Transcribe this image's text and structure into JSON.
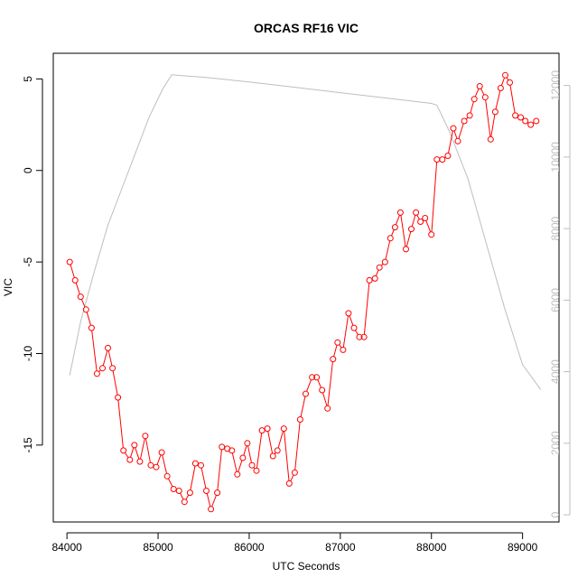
{
  "chart_data": {
    "type": "line",
    "title": "ORCAS RF16 VIC",
    "xlabel": "UTC Seconds",
    "ylabel": "VIC",
    "y2label": "",
    "xlim": [
      83850,
      89400
    ],
    "ylim": [
      -19.2,
      6.4
    ],
    "y2lim": [
      -200,
      12900
    ],
    "x_ticks": [
      84000,
      85000,
      86000,
      87000,
      88000,
      89000
    ],
    "y_ticks": [
      5,
      0,
      -5,
      -10,
      -15
    ],
    "y2_ticks": [
      0,
      2000,
      4000,
      6000,
      8000,
      10000,
      12000
    ],
    "grid": false,
    "legend": "none",
    "colors": {
      "vic": "#ff0000",
      "altitude": "#bebebe",
      "axis": "#000000",
      "right_axis": "#bebebe"
    },
    "series": [
      {
        "axis": "left",
        "style": "points-lines",
        "x": [
          84030,
          84090,
          84150,
          84210,
          84270,
          84330,
          84390,
          84450,
          84500,
          84560,
          84620,
          84690,
          84740,
          84800,
          84860,
          84920,
          84980,
          85040,
          85100,
          85170,
          85230,
          85290,
          85350,
          85410,
          85470,
          85530,
          85580,
          85650,
          85700,
          85760,
          85810,
          85870,
          85930,
          85980,
          86030,
          86080,
          86140,
          86200,
          86260,
          86310,
          86380,
          86440,
          86500,
          86560,
          86620,
          86690,
          86740,
          86800,
          86860,
          86920,
          86970,
          87030,
          87090,
          87150,
          87210,
          87260,
          87320,
          87380,
          87430,
          87490,
          87550,
          87600,
          87660,
          87720,
          87780,
          87830,
          87880,
          87930,
          88000,
          88060,
          88120,
          88180,
          88240,
          88290,
          88360,
          88420,
          88470,
          88530,
          88590,
          88650,
          88700,
          88760,
          88810,
          88860,
          88920,
          88980,
          89030,
          89090,
          89150
        ],
        "values": [
          -5.0,
          -6.0,
          -6.9,
          -7.6,
          -8.6,
          -11.1,
          -10.8,
          -9.7,
          -10.8,
          -12.4,
          -15.3,
          -15.8,
          -15.0,
          -15.9,
          -14.5,
          -16.1,
          -16.2,
          -15.4,
          -16.7,
          -17.4,
          -17.5,
          -18.1,
          -17.6,
          -16.0,
          -16.1,
          -17.5,
          -18.5,
          -17.6,
          -15.1,
          -15.2,
          -15.3,
          -16.6,
          -15.7,
          -14.9,
          -16.1,
          -16.4,
          -14.2,
          -14.1,
          -15.6,
          -15.3,
          -14.1,
          -17.1,
          -16.5,
          -13.6,
          -12.2,
          -11.3,
          -11.3,
          -12.0,
          -13.0,
          -10.3,
          -9.4,
          -9.8,
          -7.8,
          -8.6,
          -9.1,
          -9.1,
          -6.0,
          -5.9,
          -5.3,
          -5.0,
          -3.7,
          -3.1,
          -2.3,
          -4.3,
          -3.2,
          -2.3,
          -2.8,
          -2.6,
          -3.5,
          0.6,
          0.6,
          0.8,
          2.3,
          1.6,
          2.7,
          3.0,
          3.9,
          4.6,
          4.0,
          1.7,
          3.2,
          4.5,
          5.2,
          4.8,
          3.0,
          2.9,
          2.7,
          2.5,
          2.7
        ]
      },
      {
        "axis": "right",
        "style": "line",
        "x": [
          84030,
          84150,
          84300,
          84450,
          84600,
          84750,
          84900,
          85050,
          85150,
          85250,
          85500,
          86000,
          86500,
          87000,
          87500,
          88000,
          88060,
          88200,
          88400,
          88600,
          88800,
          89000,
          89200
        ],
        "values": [
          3900,
          5400,
          6800,
          8100,
          9100,
          10100,
          11100,
          11900,
          12300,
          12280,
          12230,
          12100,
          11950,
          11800,
          11650,
          11500,
          11450,
          10700,
          9400,
          7600,
          5800,
          4200,
          3500
        ]
      }
    ]
  }
}
